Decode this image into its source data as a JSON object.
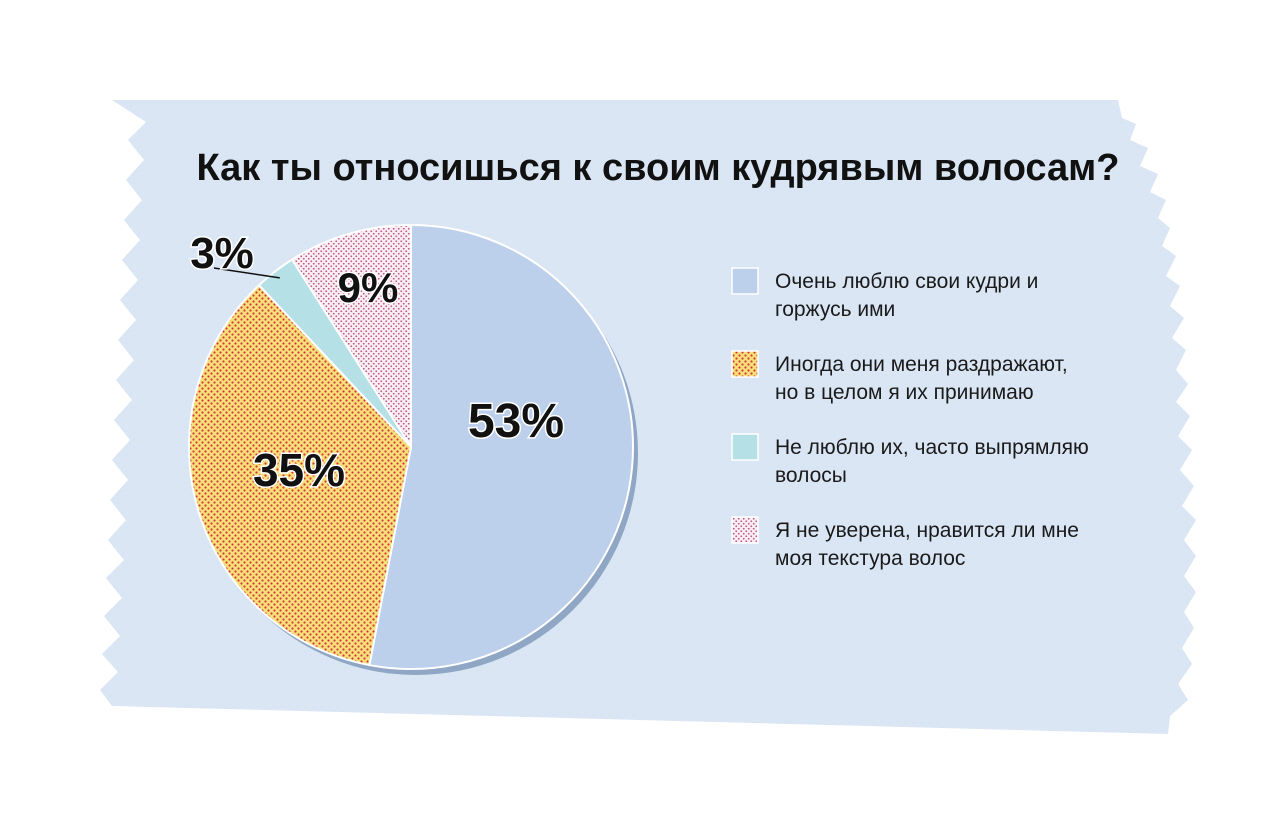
{
  "chart_data": {
    "type": "pie",
    "title": "Как ты относишься к своим кудрявым волосам?",
    "slices": [
      {
        "value": 53,
        "label": "53%",
        "legend": [
          "Очень люблю свои кудри и",
          "горжусь ими"
        ],
        "color": "#bccfeb",
        "pattern": "solid"
      },
      {
        "value": 35,
        "label": "35%",
        "legend": [
          "Иногда они меня раздражают,",
          "но в целом я их принимаю"
        ],
        "color": "#f6e07a",
        "pattern": "dots-red"
      },
      {
        "value": 3,
        "label": "3%",
        "legend": [
          "Не люблю их, часто выпрямляю",
          "волосы"
        ],
        "color": "#b4e0e6",
        "pattern": "solid"
      },
      {
        "value": 9,
        "label": "9%",
        "legend": [
          "Я не уверена, нравится ли мне",
          "моя текстура волос"
        ],
        "color": "#f6e6ee",
        "pattern": "dots-pink"
      }
    ],
    "legend_position": "right"
  },
  "colors": {
    "paper": "#dae6f4",
    "text": "#111111"
  }
}
